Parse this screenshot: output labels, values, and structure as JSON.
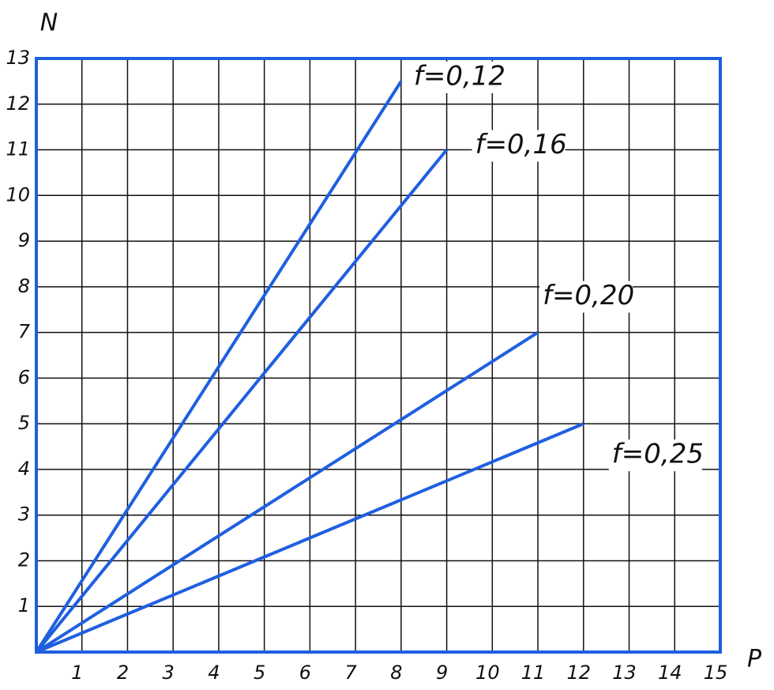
{
  "chart_data": {
    "type": "line",
    "x_label": "P",
    "y_label": "N",
    "xlim": [
      0,
      15
    ],
    "ylim": [
      0,
      13
    ],
    "xticks": [
      1,
      2,
      3,
      4,
      5,
      6,
      7,
      8,
      9,
      10,
      11,
      12,
      13,
      14,
      15
    ],
    "yticks": [
      1,
      2,
      3,
      4,
      5,
      6,
      7,
      8,
      9,
      10,
      11,
      12,
      13
    ],
    "grid": true,
    "frame_color": "#1f5fe0",
    "series": [
      {
        "name": "f=0,12",
        "color": "#1f5fe0",
        "x": [
          0,
          8
        ],
        "values": [
          0,
          12.5
        ]
      },
      {
        "name": "f=0,16",
        "color": "#1f5fe0",
        "x": [
          0,
          9
        ],
        "values": [
          0,
          11
        ]
      },
      {
        "name": "f=0,20",
        "color": "#1f5fe0",
        "x": [
          0,
          11
        ],
        "values": [
          0,
          7
        ]
      },
      {
        "name": "f=0,25",
        "color": "#1f5fe0",
        "x": [
          0,
          12
        ],
        "values": [
          0,
          5
        ]
      }
    ]
  }
}
